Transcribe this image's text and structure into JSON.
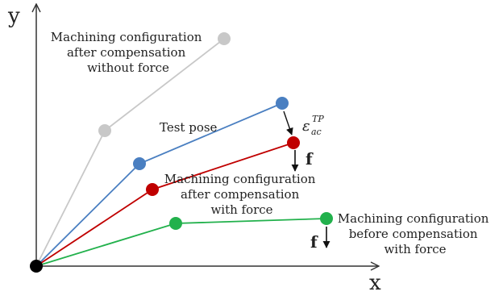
{
  "axes": {
    "x_label": "x",
    "y_label": "y"
  },
  "configurations": {
    "without_force": {
      "lines": [
        "Machining configuration",
        "after compensation",
        "without force"
      ],
      "color": "#c8c8c8"
    },
    "test_pose": {
      "label": "Test pose",
      "color": "#4a7fc1"
    },
    "with_force_after": {
      "lines": [
        "Machining configuration",
        "after compensation",
        "with force"
      ],
      "color": "#c00000"
    },
    "with_force_before": {
      "lines": [
        "Machining configuration",
        "before compensation",
        "with force"
      ],
      "color": "#22b14c"
    }
  },
  "annotations": {
    "error_symbol": "ε",
    "error_superscript": "TP",
    "error_subscript": "ac",
    "force_label_1": "f",
    "force_label_2": "f"
  },
  "colors": {
    "origin": "#000000",
    "axis": "#333333"
  }
}
